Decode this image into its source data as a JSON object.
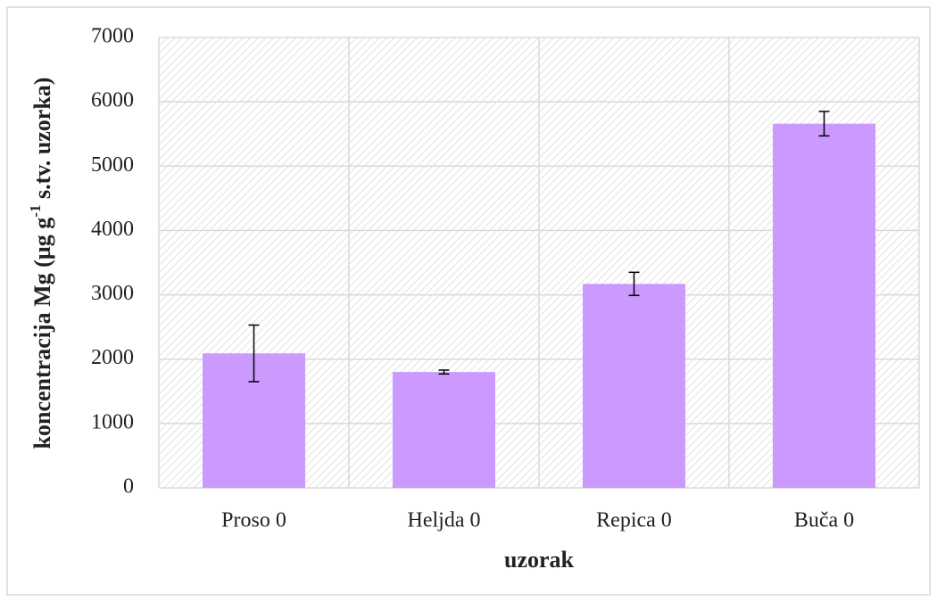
{
  "chart_data": {
    "type": "bar",
    "categories": [
      "Proso 0",
      "Heljda 0",
      "Repica 0",
      "Buča 0"
    ],
    "values": [
      2090,
      1800,
      3170,
      5660
    ],
    "errors": [
      440,
      30,
      180,
      190
    ],
    "color": "#cc99ff",
    "xlabel": "uzorak",
    "ylabel": [
      "koncentracija Mg (µg g",
      "-1",
      " s.tv. uzorka)"
    ],
    "ylim": [
      0,
      7000
    ],
    "yticks": [
      0,
      1000,
      2000,
      3000,
      4000,
      5000,
      6000,
      7000
    ],
    "grid": true
  }
}
